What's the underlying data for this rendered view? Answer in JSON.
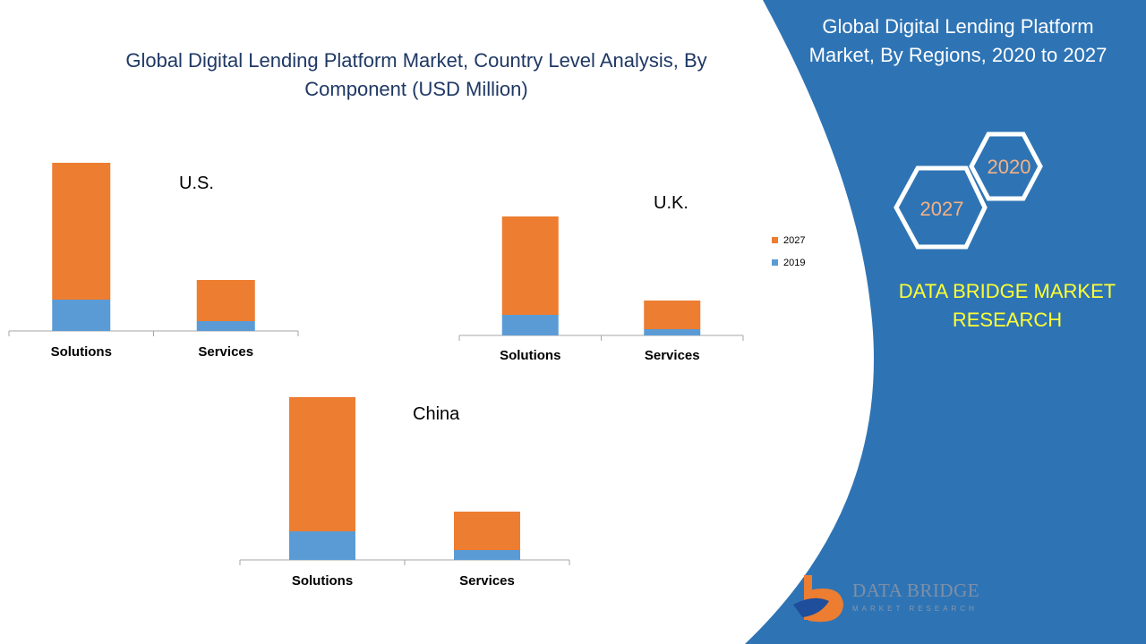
{
  "title": "Global Digital Lending Platform Market, Country Level Analysis, By Component (USD Million)",
  "side_panel": {
    "title": "Global Digital Lending Platform Market, By Regions, 2020 to 2027",
    "hex_badges": [
      "2020",
      "2027"
    ],
    "brand_text": "DATA BRIDGE MARKET RESEARCH",
    "logo_text": "DATA BRIDGE",
    "logo_subtext": "MARKET RESEARCH"
  },
  "colors": {
    "series_2019": "#5b9bd5",
    "series_2027": "#ed7d31",
    "panel_blue": "#2e74b5",
    "title_navy": "#1f3864",
    "brand_yellow": "#ffff33",
    "badge_text": "#f4b183"
  },
  "legend": [
    "2027",
    "2019"
  ],
  "chart_data": [
    {
      "type": "bar",
      "stacked": true,
      "title": "U.S.",
      "categories": [
        "Solutions",
        "Services"
      ],
      "series": [
        {
          "name": "2019",
          "values": [
            35,
            11
          ]
        },
        {
          "name": "2027",
          "values": [
            153,
            46
          ]
        }
      ]
    },
    {
      "type": "bar",
      "stacked": true,
      "title": "U.K.",
      "categories": [
        "Solutions",
        "Services"
      ],
      "series": [
        {
          "name": "2019",
          "values": [
            23,
            7
          ]
        },
        {
          "name": "2027",
          "values": [
            110,
            32
          ]
        }
      ]
    },
    {
      "type": "bar",
      "stacked": true,
      "title": "China",
      "categories": [
        "Solutions",
        "Services"
      ],
      "series": [
        {
          "name": "2019",
          "values": [
            32,
            11
          ]
        },
        {
          "name": "2027",
          "values": [
            150,
            43
          ]
        }
      ]
    }
  ]
}
